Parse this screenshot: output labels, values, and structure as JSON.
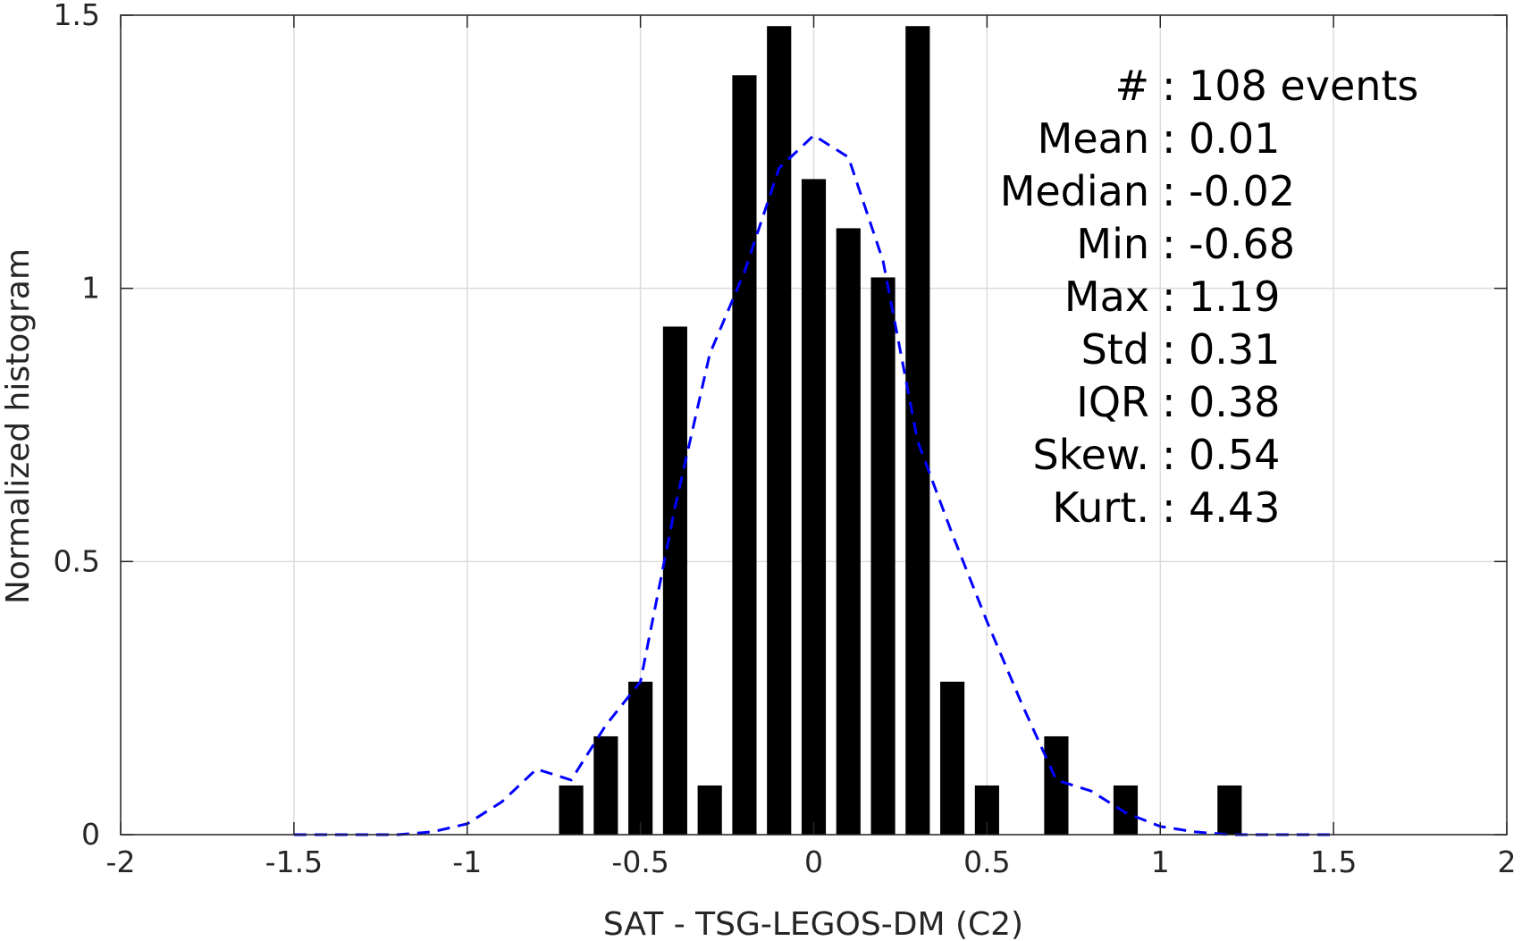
{
  "chart_data": {
    "type": "bar",
    "xlabel": "SAT - TSG-LEGOS-DM (C2)",
    "ylabel": "Normalized histogram",
    "xlim": [
      -2,
      2
    ],
    "ylim": [
      0,
      1.5
    ],
    "xticks": [
      -2,
      -1.5,
      -1,
      -0.5,
      0,
      0.5,
      1,
      1.5,
      2
    ],
    "xtick_labels": [
      "-2",
      "-1.5",
      "-1",
      "-0.5",
      "0",
      "0.5",
      "1",
      "1.5",
      "2"
    ],
    "yticks": [
      0,
      0.5,
      1,
      1.5
    ],
    "ytick_labels": [
      "0",
      "0.5",
      "1",
      "1.5"
    ],
    "grid": true,
    "bar_color": "#000000",
    "bar_width": 0.07,
    "bars": [
      {
        "x": -0.7,
        "y": 0.09
      },
      {
        "x": -0.6,
        "y": 0.18
      },
      {
        "x": -0.5,
        "y": 0.28
      },
      {
        "x": -0.4,
        "y": 0.93
      },
      {
        "x": -0.3,
        "y": 0.09
      },
      {
        "x": -0.2,
        "y": 1.39
      },
      {
        "x": -0.1,
        "y": 1.48
      },
      {
        "x": 0.0,
        "y": 1.2
      },
      {
        "x": 0.1,
        "y": 1.11
      },
      {
        "x": 0.2,
        "y": 1.02
      },
      {
        "x": 0.3,
        "y": 1.48
      },
      {
        "x": 0.4,
        "y": 0.28
      },
      {
        "x": 0.5,
        "y": 0.09
      },
      {
        "x": 0.7,
        "y": 0.18
      },
      {
        "x": 0.9,
        "y": 0.09
      },
      {
        "x": 1.2,
        "y": 0.09
      }
    ],
    "fit_curve": {
      "color": "#0000ff",
      "style": "dashed",
      "x": [
        -1.5,
        -1.4,
        -1.3,
        -1.2,
        -1.1,
        -1.0,
        -0.9,
        -0.8,
        -0.7,
        -0.6,
        -0.5,
        -0.4,
        -0.3,
        -0.2,
        -0.1,
        0.0,
        0.1,
        0.2,
        0.3,
        0.4,
        0.5,
        0.6,
        0.7,
        0.8,
        0.9,
        1.0,
        1.1,
        1.2,
        1.3,
        1.4,
        1.5
      ],
      "y": [
        0.0,
        0.0,
        0.0,
        0.0,
        0.005,
        0.02,
        0.06,
        0.12,
        0.1,
        0.2,
        0.28,
        0.6,
        0.88,
        1.03,
        1.22,
        1.28,
        1.24,
        1.05,
        0.72,
        0.55,
        0.39,
        0.24,
        0.1,
        0.08,
        0.04,
        0.015,
        0.005,
        0.0,
        0.0,
        0.0,
        0.0
      ]
    },
    "annotation": {
      "position": "top-right",
      "lines": [
        {
          "label": "#",
          "sep": ":",
          "value": "108 events"
        },
        {
          "label": "Mean",
          "sep": ":",
          "value": "0.01"
        },
        {
          "label": "Median",
          "sep": ":",
          "value": "-0.02"
        },
        {
          "label": "Min",
          "sep": ":",
          "value": "-0.68"
        },
        {
          "label": "Max",
          "sep": ":",
          "value": "1.19"
        },
        {
          "label": "Std",
          "sep": ":",
          "value": "0.31"
        },
        {
          "label": "IQR",
          "sep": ":",
          "value": "0.38"
        },
        {
          "label": "Skew.",
          "sep": ":",
          "value": "0.54"
        },
        {
          "label": "Kurt.",
          "sep": ":",
          "value": "4.43"
        }
      ]
    }
  }
}
